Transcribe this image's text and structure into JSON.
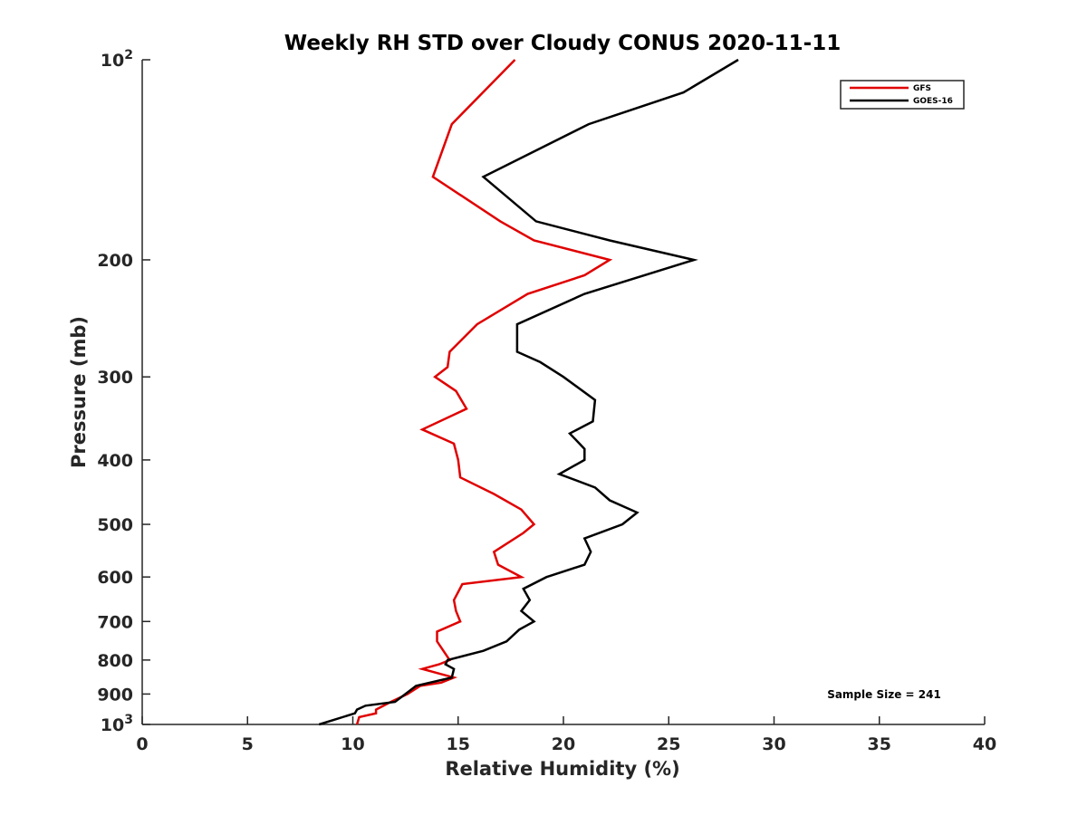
{
  "chart_data": {
    "type": "line",
    "title": "Weekly RH STD over Cloudy CONUS 2020-11-11",
    "xlabel": "Relative Humidity (%)",
    "ylabel": "Pressure (mb)",
    "xlim": [
      0,
      40
    ],
    "ylim": [
      100,
      1000
    ],
    "y_scale": "log",
    "y_reversed": true,
    "grid": false,
    "legend_position": "top-right",
    "x_ticks": [
      0,
      5,
      10,
      15,
      20,
      25,
      30,
      35,
      40
    ],
    "x_tick_labels": [
      "0",
      "5",
      "10",
      "15",
      "20",
      "25",
      "30",
      "35",
      "40"
    ],
    "y_ticks": [
      {
        "value": 100,
        "base": "10",
        "exp": "2"
      },
      {
        "value": 200,
        "label": "200"
      },
      {
        "value": 300,
        "label": "300"
      },
      {
        "value": 400,
        "label": "400"
      },
      {
        "value": 500,
        "label": "500"
      },
      {
        "value": 600,
        "label": "600"
      },
      {
        "value": 700,
        "label": "700"
      },
      {
        "value": 800,
        "label": "800"
      },
      {
        "value": 900,
        "label": "900"
      },
      {
        "value": 1000,
        "base": "10",
        "exp": "3"
      }
    ],
    "annotation": "Sample Size = 241",
    "series": [
      {
        "name": "GFS",
        "color": "#e00000",
        "points": [
          [
            17.7,
            100
          ],
          [
            14.7,
            125
          ],
          [
            13.8,
            150
          ],
          [
            17.0,
            175
          ],
          [
            18.6,
            187
          ],
          [
            22.2,
            200
          ],
          [
            21.0,
            211
          ],
          [
            18.3,
            225
          ],
          [
            15.9,
            250
          ],
          [
            14.6,
            275
          ],
          [
            14.5,
            290
          ],
          [
            13.9,
            300
          ],
          [
            14.9,
            315
          ],
          [
            15.4,
            335
          ],
          [
            13.3,
            360
          ],
          [
            14.8,
            378
          ],
          [
            15.0,
            400
          ],
          [
            15.1,
            425
          ],
          [
            16.7,
            450
          ],
          [
            18.0,
            475
          ],
          [
            18.6,
            500
          ],
          [
            18.1,
            515
          ],
          [
            16.7,
            550
          ],
          [
            16.9,
            575
          ],
          [
            18.0,
            600
          ],
          [
            15.2,
            615
          ],
          [
            14.8,
            650
          ],
          [
            14.9,
            675
          ],
          [
            15.1,
            700
          ],
          [
            14.0,
            725
          ],
          [
            14.0,
            750
          ],
          [
            14.3,
            775
          ],
          [
            14.6,
            800
          ],
          [
            14.1,
            812
          ],
          [
            13.3,
            825
          ],
          [
            14.2,
            840
          ],
          [
            14.8,
            850
          ],
          [
            14.2,
            865
          ],
          [
            13.2,
            875
          ],
          [
            12.6,
            900
          ],
          [
            11.8,
            925
          ],
          [
            11.1,
            950
          ],
          [
            11.1,
            962
          ],
          [
            10.3,
            975
          ],
          [
            10.2,
            1000
          ]
        ]
      },
      {
        "name": "GOES-16",
        "color": "#000000",
        "points": [
          [
            28.3,
            100
          ],
          [
            25.7,
            112
          ],
          [
            21.2,
            125
          ],
          [
            16.2,
            150
          ],
          [
            18.7,
            175
          ],
          [
            22.2,
            187
          ],
          [
            26.2,
            200
          ],
          [
            21.0,
            225
          ],
          [
            17.8,
            250
          ],
          [
            17.8,
            275
          ],
          [
            18.9,
            285
          ],
          [
            20.0,
            300
          ],
          [
            21.5,
            325
          ],
          [
            21.4,
            350
          ],
          [
            20.3,
            365
          ],
          [
            21.0,
            385
          ],
          [
            21.0,
            400
          ],
          [
            19.8,
            420
          ],
          [
            21.5,
            440
          ],
          [
            22.2,
            460
          ],
          [
            23.5,
            480
          ],
          [
            22.8,
            500
          ],
          [
            21.0,
            525
          ],
          [
            21.3,
            550
          ],
          [
            21.0,
            575
          ],
          [
            19.2,
            600
          ],
          [
            18.1,
            625
          ],
          [
            18.4,
            650
          ],
          [
            18.0,
            675
          ],
          [
            18.6,
            700
          ],
          [
            17.9,
            720
          ],
          [
            17.3,
            750
          ],
          [
            16.2,
            775
          ],
          [
            14.5,
            800
          ],
          [
            14.4,
            812
          ],
          [
            14.8,
            825
          ],
          [
            14.7,
            850
          ],
          [
            13.0,
            875
          ],
          [
            12.5,
            900
          ],
          [
            12.0,
            925
          ],
          [
            10.6,
            937
          ],
          [
            10.2,
            950
          ],
          [
            10.1,
            962
          ],
          [
            8.4,
            1000
          ]
        ]
      }
    ]
  }
}
